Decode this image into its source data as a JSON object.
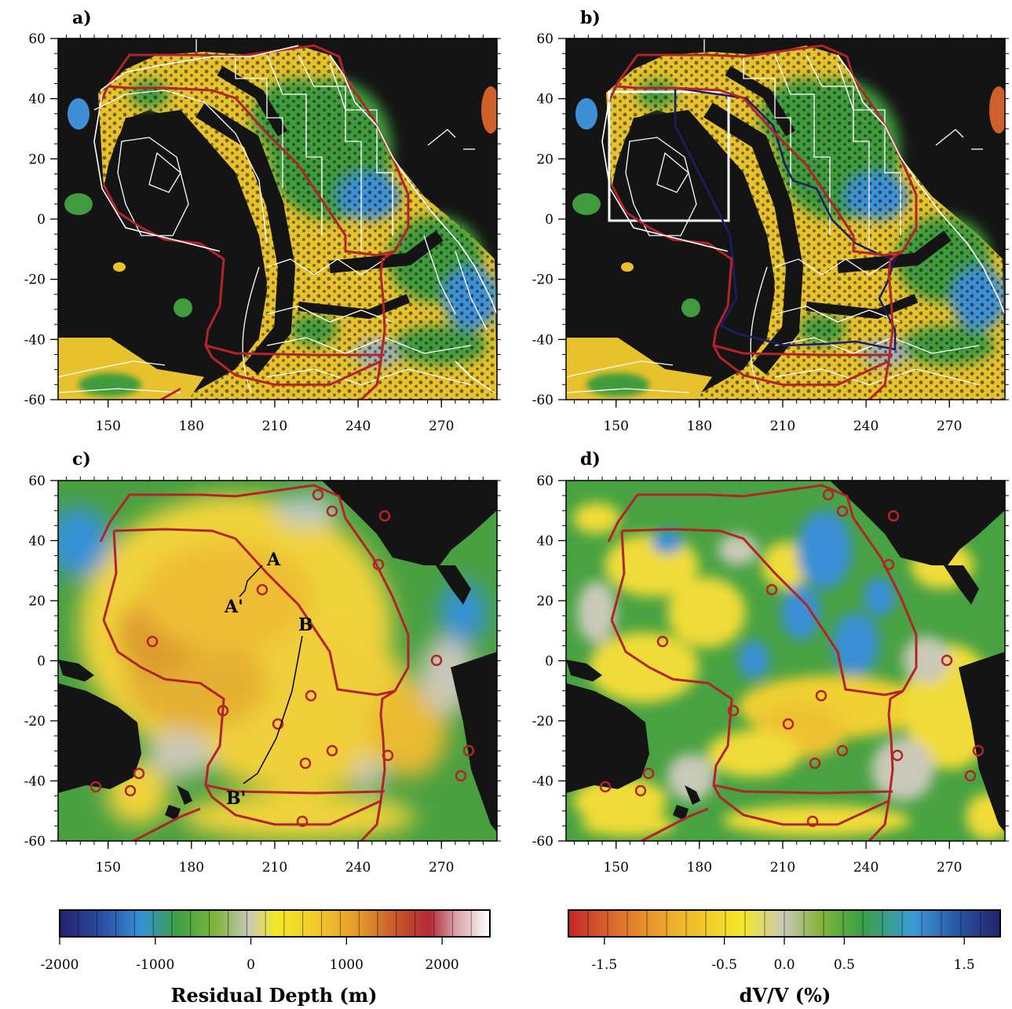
{
  "panels": [
    {
      "id": "a",
      "label": "a)",
      "kind": "residual-depth-map"
    },
    {
      "id": "b",
      "label": "b)",
      "kind": "residual-depth-map"
    },
    {
      "id": "c",
      "label": "c)",
      "kind": "smoothed-residual-depth-map"
    },
    {
      "id": "d",
      "label": "d)",
      "kind": "tomography-map"
    }
  ],
  "axes": {
    "longitude_ticks": [
      "150",
      "180",
      "210",
      "240",
      "270"
    ],
    "latitude_ticks": [
      "60",
      "40",
      "20",
      "0",
      "-20",
      "-40",
      "-60"
    ],
    "longitude_range": [
      132,
      290
    ],
    "latitude_range": [
      -60,
      60
    ]
  },
  "profiles": {
    "start_a": "A",
    "end_a": "A'",
    "start_b": "B",
    "end_b": "B'"
  },
  "colorbars": {
    "depth": {
      "title": "Residual Depth (m)",
      "tick_labels": [
        "-2000",
        "-1000",
        "0",
        "1000",
        "2000"
      ],
      "range": [
        -2000,
        2500
      ]
    },
    "velocity": {
      "title": "dV/V (%)",
      "tick_labels": [
        "-1.5",
        "-0.5",
        "0.0",
        "0.5",
        "1.5"
      ],
      "range": [
        -1.8,
        1.8
      ]
    }
  },
  "colors": {
    "land": "#141414",
    "ocean_green": "#3e9a3a",
    "swell_yellow": "#f2d22a",
    "deep_blue": "#3a8fd6",
    "outline_red": "#b3242a",
    "plate_boundary_white": "#ffffff",
    "box_navy": "#1d1e6a"
  }
}
